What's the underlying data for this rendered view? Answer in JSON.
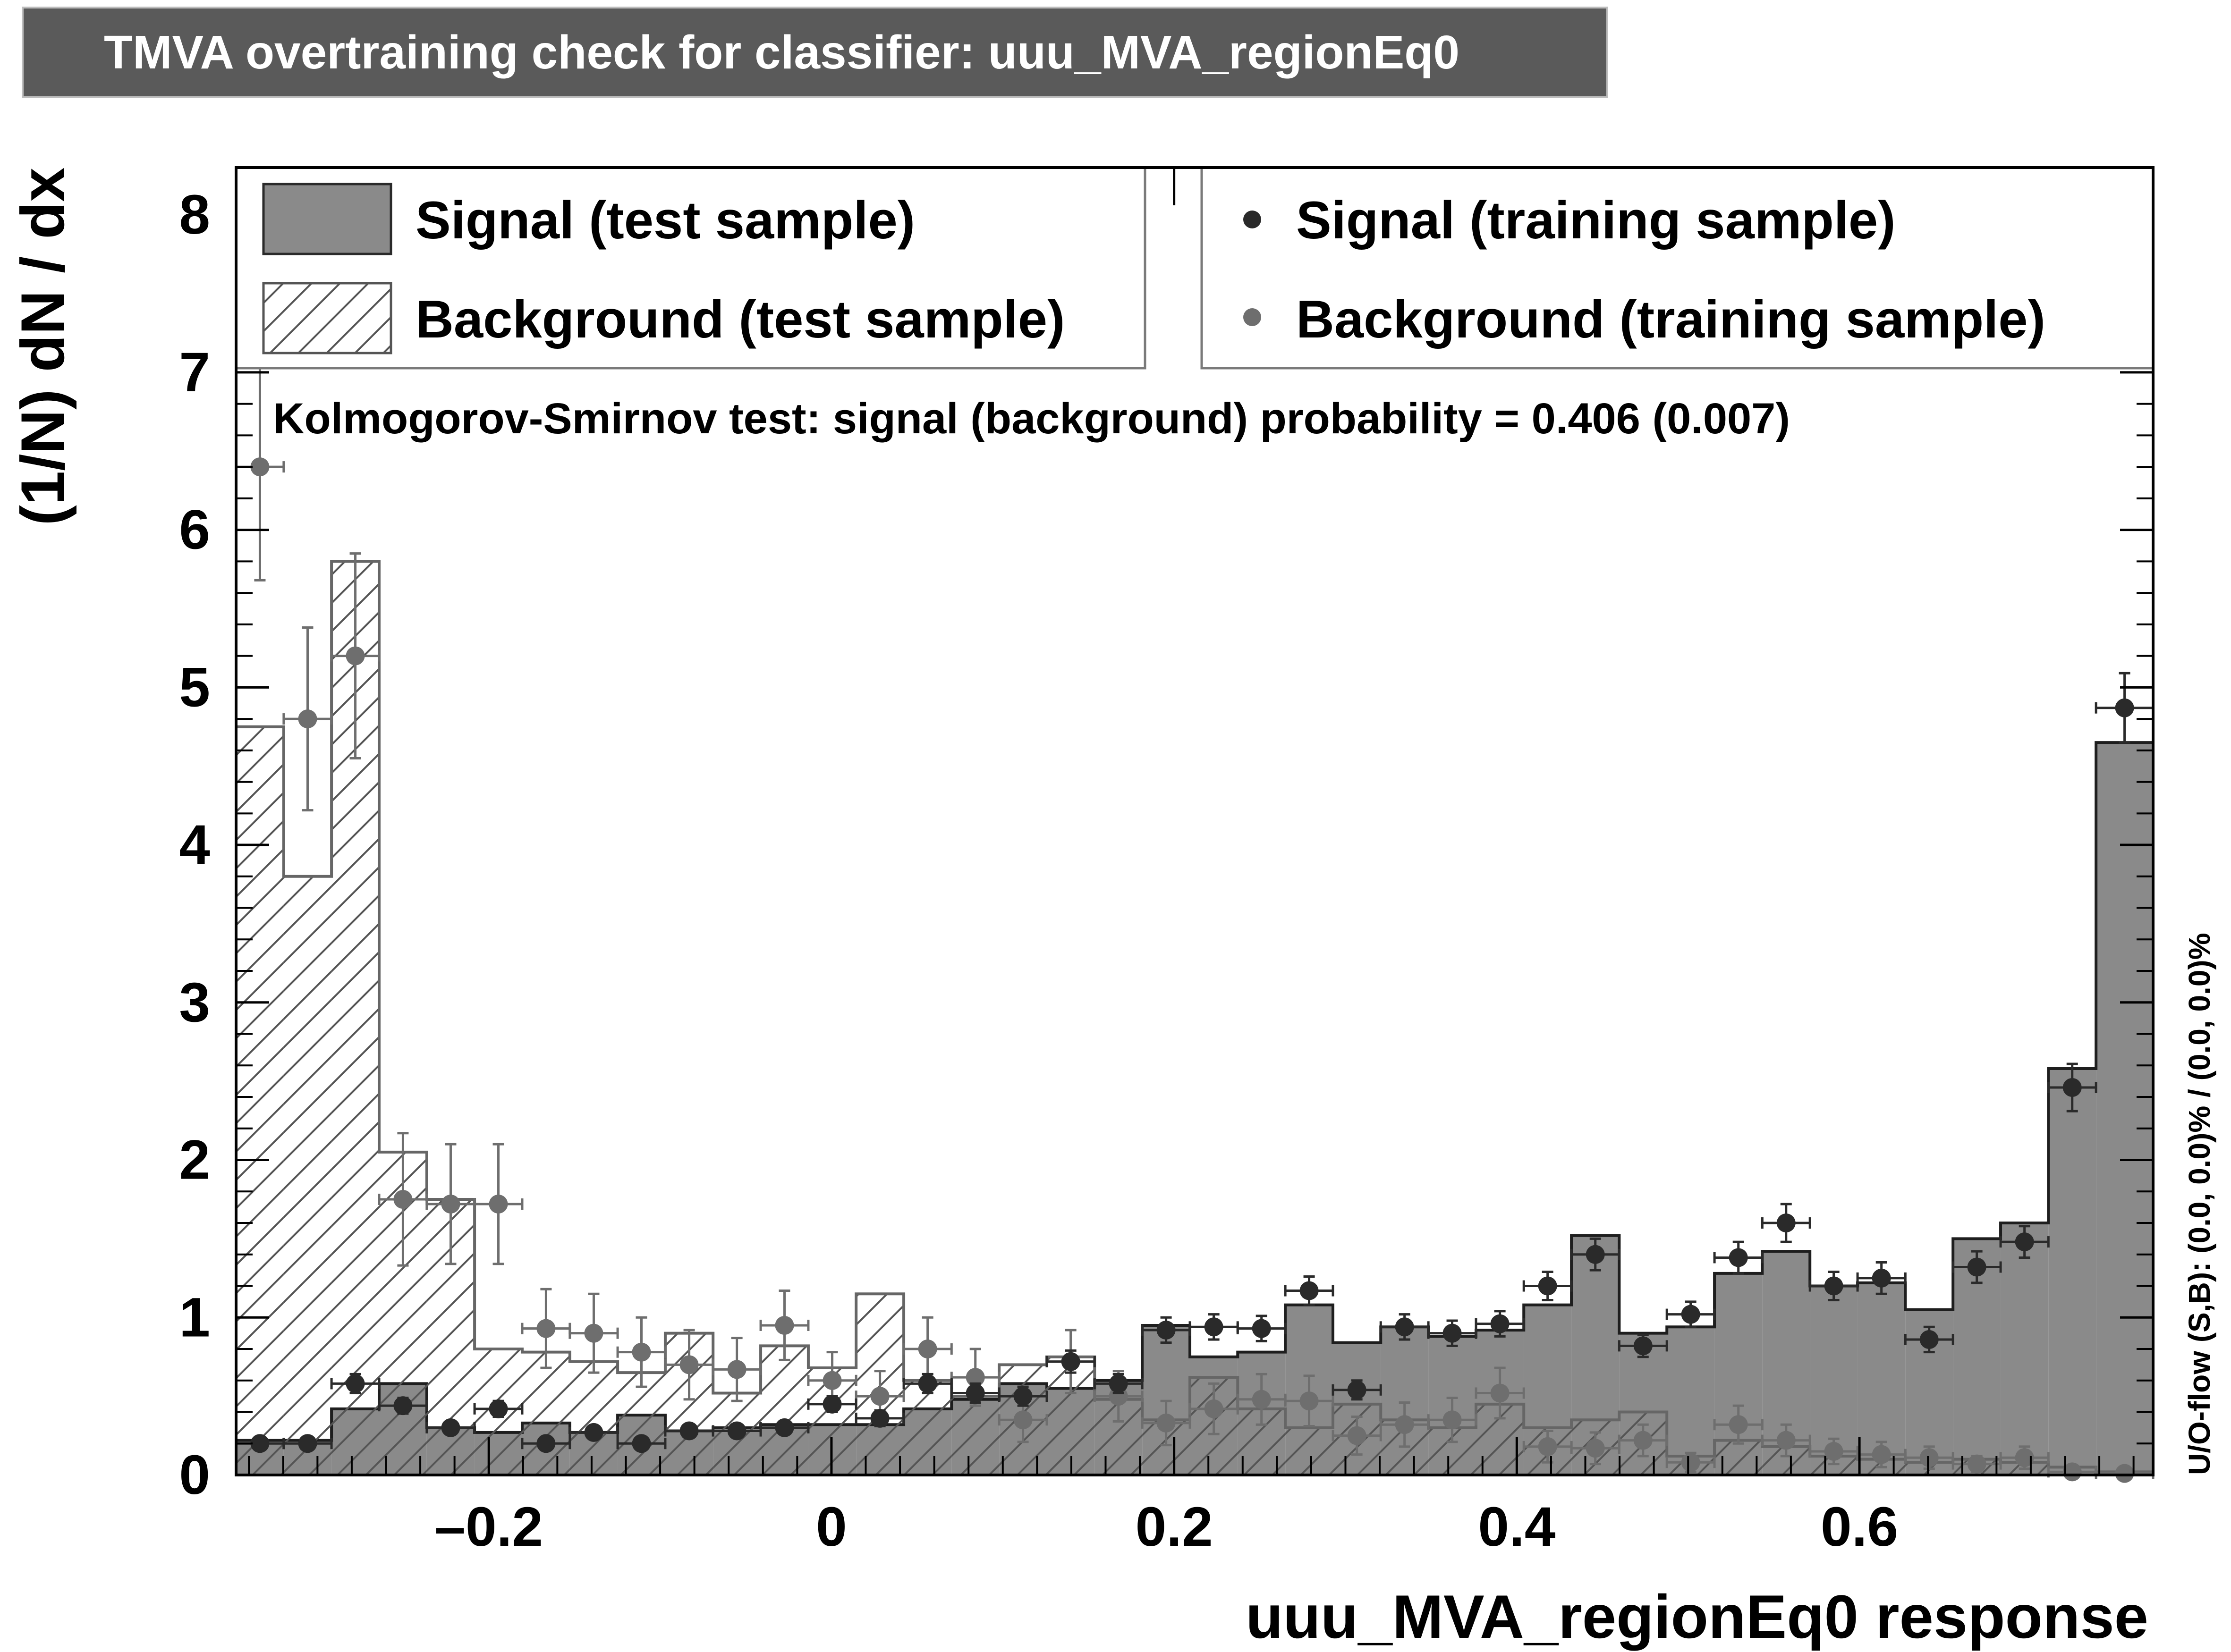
{
  "title": "TMVA overtraining check for classifier: uuu_MVA_regionEq0",
  "chart_data": {
    "type": "histogram",
    "xlabel": "uuu_MVA_regionEq0 response",
    "ylabel": "(1/N) dN / dx",
    "xlim": [
      -0.3475,
      0.7714
    ],
    "ylim": [
      0,
      8.3
    ],
    "x_ticks": [
      -0.2,
      0,
      0.2,
      0.4,
      0.6
    ],
    "x_tick_labels": [
      "–0.2",
      "0",
      "0.2",
      "0.4",
      "0.6"
    ],
    "y_ticks": [
      0,
      1,
      2,
      3,
      4,
      5,
      6,
      7,
      8
    ],
    "y_tick_labels": [
      "0",
      "1",
      "2",
      "3",
      "4",
      "5",
      "6",
      "7",
      "8"
    ],
    "bin_edges": [
      -0.3475,
      -0.3197,
      -0.2918,
      -0.264,
      -0.2362,
      -0.2083,
      -0.1805,
      -0.1527,
      -0.1248,
      -0.097,
      -0.0691,
      -0.0413,
      -0.0135,
      0.0144,
      0.0422,
      0.0701,
      0.0979,
      0.1257,
      0.1536,
      0.1814,
      0.2092,
      0.2371,
      0.2649,
      0.2927,
      0.3206,
      0.3484,
      0.3762,
      0.4041,
      0.4319,
      0.4598,
      0.4876,
      0.5154,
      0.5433,
      0.5711,
      0.5989,
      0.6268,
      0.6546,
      0.6824,
      0.7103,
      0.7381,
      0.7714
    ],
    "legend": {
      "signal_test": "Signal (test sample)",
      "background_test": "Background (test sample)",
      "signal_train": "Signal (training sample)",
      "background_train": "Background (training sample)"
    },
    "series": [
      {
        "name": "Signal (test sample)",
        "style": "filled-histogram",
        "color": "#8a8a8a",
        "values": [
          0.22,
          0.22,
          0.42,
          0.58,
          0.3,
          0.27,
          0.33,
          0.27,
          0.38,
          0.28,
          0.3,
          0.32,
          0.32,
          0.32,
          0.42,
          0.48,
          0.58,
          0.55,
          0.6,
          0.95,
          0.75,
          0.78,
          1.08,
          0.84,
          0.94,
          0.88,
          0.92,
          1.08,
          1.52,
          0.9,
          0.94,
          1.28,
          1.42,
          1.2,
          1.22,
          1.05,
          1.5,
          1.6,
          2.58,
          4.65
        ]
      },
      {
        "name": "Background (test sample)",
        "style": "hatched-histogram",
        "color": "#666666",
        "values": [
          4.75,
          3.8,
          5.8,
          2.05,
          1.75,
          0.8,
          0.78,
          0.72,
          0.65,
          0.9,
          0.52,
          0.82,
          0.68,
          1.15,
          0.6,
          0.5,
          0.7,
          0.75,
          0.48,
          0.35,
          0.62,
          0.42,
          0.3,
          0.45,
          0.35,
          0.3,
          0.45,
          0.3,
          0.35,
          0.4,
          0.12,
          0.22,
          0.18,
          0.12,
          0.1,
          0.08,
          0.1,
          0.08,
          0.05,
          0.02
        ]
      },
      {
        "name": "Signal (training sample)",
        "style": "points",
        "color": "#2a2a2a",
        "values": [
          0.2,
          0.2,
          0.58,
          0.44,
          0.3,
          0.42,
          0.2,
          0.27,
          0.2,
          0.28,
          0.28,
          0.3,
          0.45,
          0.36,
          0.58,
          0.52,
          0.5,
          0.72,
          0.58,
          0.92,
          0.94,
          0.93,
          1.17,
          0.54,
          0.94,
          0.9,
          0.96,
          1.2,
          1.4,
          0.82,
          1.02,
          1.38,
          1.6,
          1.2,
          1.25,
          0.86,
          1.32,
          1.48,
          2.46,
          4.87
        ],
        "errors": [
          0.03,
          0.03,
          0.06,
          0.05,
          0.04,
          0.05,
          0.03,
          0.04,
          0.03,
          0.04,
          0.04,
          0.04,
          0.05,
          0.05,
          0.06,
          0.06,
          0.06,
          0.07,
          0.06,
          0.08,
          0.08,
          0.08,
          0.09,
          0.06,
          0.08,
          0.08,
          0.08,
          0.09,
          0.1,
          0.07,
          0.08,
          0.1,
          0.12,
          0.09,
          0.1,
          0.08,
          0.1,
          0.1,
          0.15,
          0.22
        ]
      },
      {
        "name": "Background (training sample)",
        "style": "points",
        "color": "#6e6e6e",
        "values": [
          6.4,
          4.8,
          5.2,
          1.75,
          1.72,
          1.72,
          0.93,
          0.9,
          0.78,
          0.7,
          0.67,
          0.95,
          0.6,
          0.5,
          0.8,
          0.62,
          0.35,
          0.72,
          0.5,
          0.33,
          0.42,
          0.48,
          0.47,
          0.25,
          0.32,
          0.35,
          0.52,
          0.18,
          0.17,
          0.22,
          0.08,
          0.32,
          0.22,
          0.15,
          0.13,
          0.11,
          0.07,
          0.11,
          0.02,
          0.01
        ],
        "errors": [
          0.72,
          0.58,
          0.65,
          0.42,
          0.38,
          0.38,
          0.25,
          0.25,
          0.22,
          0.22,
          0.2,
          0.22,
          0.18,
          0.16,
          0.2,
          0.18,
          0.14,
          0.2,
          0.16,
          0.14,
          0.16,
          0.16,
          0.16,
          0.12,
          0.14,
          0.14,
          0.16,
          0.1,
          0.1,
          0.1,
          0.06,
          0.12,
          0.1,
          0.08,
          0.08,
          0.07,
          0.05,
          0.07,
          0.02,
          0.01
        ]
      }
    ],
    "ks_text": "Kolmogorov-Smirnov test: signal (background) probability = 0.406 (0.007)",
    "overflow_text": "U/O-flow (S,B): (0.0, 0.0)% / (0.0, 0.0)%",
    "grid": false,
    "legend_placement": "top"
  }
}
